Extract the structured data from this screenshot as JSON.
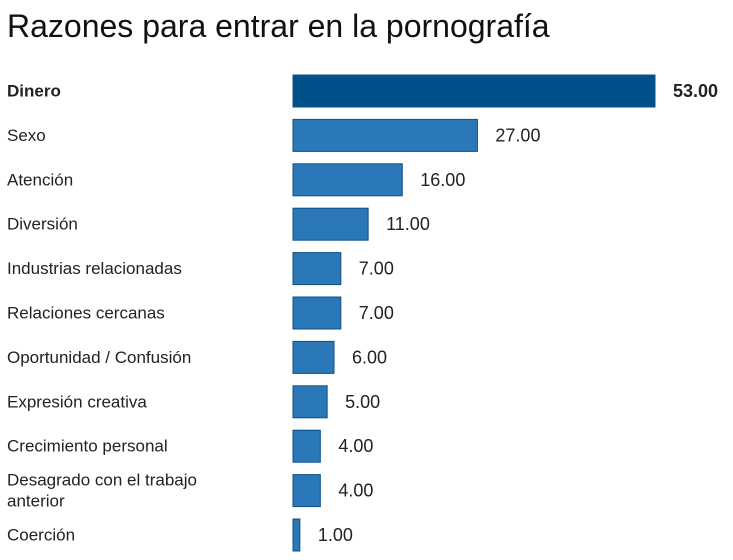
{
  "chart_data": {
    "type": "bar",
    "orientation": "horizontal",
    "title": "Razones para entrar en la pornografía",
    "categories": [
      "Dinero",
      "Sexo",
      "Atención",
      "Diversión",
      "Industrias relacionadas",
      "Relaciones cercanas",
      "Oportunidad / Confusión",
      "Expresión creativa",
      "Crecimiento personal",
      "Desagrado con el trabajo anterior",
      "Coerción"
    ],
    "values": [
      53,
      27,
      16,
      11,
      7,
      7,
      6,
      5,
      4,
      4,
      1
    ],
    "value_labels": [
      "53.00",
      "27.00",
      "16.00",
      "11.00",
      "7.00",
      "7.00",
      "6.00",
      "5.00",
      "4.00",
      "4.00",
      "1.00"
    ],
    "highlight_index": 0,
    "colors": {
      "highlight": "#00508a",
      "bar": "#2b78b8",
      "stroke": "#0f4f86"
    },
    "xlabel": "",
    "ylabel": "",
    "xlim": [
      0,
      53
    ],
    "grid": false,
    "legend": "none"
  }
}
